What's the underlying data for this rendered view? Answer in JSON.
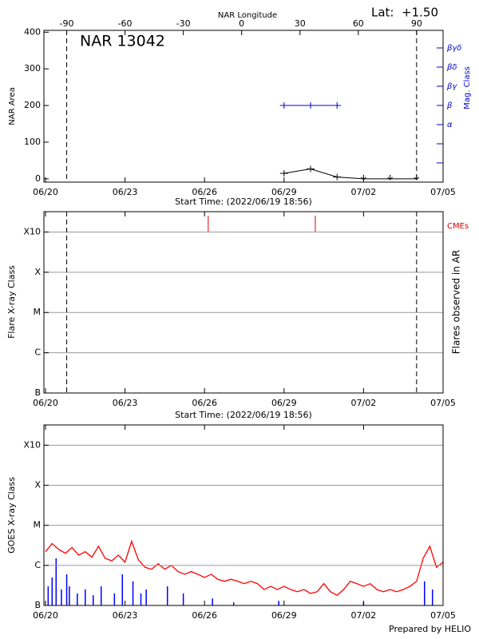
{
  "chart_data": [
    {
      "type": "nar",
      "title": "NAR 13042",
      "annotation": "Lat:  +1.50",
      "x2label": "NAR Longitude",
      "xlabel": "Start Time: (2022/06/19 18:56)",
      "ylabel": "NAR Area",
      "y2label": "Mag. Class",
      "xlim": [
        -0.06,
        15
      ],
      "xticks": [
        {
          "value": 0,
          "label": "06/20"
        },
        {
          "value": 3,
          "label": "06/23"
        },
        {
          "value": 6,
          "label": "06/26"
        },
        {
          "value": 9,
          "label": "06/29"
        },
        {
          "value": 12,
          "label": "07/02"
        },
        {
          "value": 15,
          "label": "07/05"
        }
      ],
      "x2lim": [
        -101.7,
        103.6
      ],
      "x2ticks": [
        -90,
        -60,
        -30,
        0,
        30,
        60,
        90
      ],
      "ylim": [
        -9,
        405
      ],
      "yticks": [
        0,
        100,
        200,
        300,
        400
      ],
      "y2ticks": [
        null,
        null,
        "α",
        "β",
        "βγ",
        "βδ",
        "βγδ"
      ],
      "limb_x": [
        0.8,
        14
      ],
      "series": [
        {
          "color": "#000000",
          "x": [
            9,
            10,
            11,
            12,
            13,
            14
          ],
          "values": [
            15,
            27,
            5,
            0,
            0,
            0
          ],
          "markers": [
            "plus",
            "plus",
            "plus",
            "arrow",
            "arrow",
            "arrow"
          ]
        },
        {
          "axis": "y2",
          "color": "#0000cc",
          "x": [
            9,
            10,
            11
          ],
          "values": [
            "β",
            "β",
            "β"
          ]
        }
      ]
    },
    {
      "type": "flares",
      "xlabel": "Start Time: (2022/06/19 18:56)",
      "ylabel": "Flare X-ray Class",
      "y2label": "Flares observed in AR",
      "xlim": [
        -0.06,
        15
      ],
      "xticks": [
        {
          "value": 0,
          "label": "06/20"
        },
        {
          "value": 3,
          "label": "06/23"
        },
        {
          "value": 6,
          "label": "06/26"
        },
        {
          "value": 9,
          "label": "06/29"
        },
        {
          "value": 12,
          "label": "07/02"
        },
        {
          "value": 15,
          "label": "07/05"
        }
      ],
      "log": true,
      "ylim": [
        1e-07,
        0.0032
      ],
      "yticks": [
        {
          "value": 1e-07,
          "label": "B"
        },
        {
          "value": 1e-06,
          "label": "C"
        },
        {
          "value": 1e-05,
          "label": "M"
        },
        {
          "value": 0.0001,
          "label": "X"
        },
        {
          "value": 0.001,
          "label": "X10"
        }
      ],
      "grid": true,
      "limb_x": [
        0.8,
        14
      ],
      "cmes": {
        "label": "CMEs",
        "color": "#dd0000",
        "x": [
          6.14,
          10.18
        ]
      }
    },
    {
      "type": "goes",
      "ylabel": "GOES X-ray Class",
      "credit": "Prepared by HELIO",
      "xlim": [
        -0.06,
        15
      ],
      "xticks": [
        {
          "value": 0,
          "label": "06/20"
        },
        {
          "value": 3,
          "label": "06/23"
        },
        {
          "value": 6,
          "label": "06/26"
        },
        {
          "value": 9,
          "label": "06/29"
        },
        {
          "value": 12,
          "label": "07/02"
        },
        {
          "value": 15,
          "label": "07/05"
        }
      ],
      "log": true,
      "ylim": [
        1e-07,
        0.0032
      ],
      "yticks": [
        {
          "value": 1e-07,
          "label": "B"
        },
        {
          "value": 1e-06,
          "label": "C"
        },
        {
          "value": 1e-05,
          "label": "M"
        },
        {
          "value": 0.0001,
          "label": "X"
        },
        {
          "value": 0.001,
          "label": "X10"
        }
      ],
      "grid": true,
      "series": [
        {
          "color": "#ff0000",
          "style": "line",
          "x": [
            0,
            0.25,
            0.5,
            0.75,
            1,
            1.25,
            1.5,
            1.75,
            2,
            2.25,
            2.5,
            2.75,
            3,
            3.25,
            3.5,
            3.75,
            4,
            4.25,
            4.5,
            4.75,
            5,
            5.25,
            5.5,
            5.75,
            6,
            6.25,
            6.5,
            6.75,
            7,
            7.25,
            7.5,
            7.75,
            8,
            8.25,
            8.5,
            8.75,
            9,
            9.25,
            9.5,
            9.75,
            10,
            10.25,
            10.5,
            10.75,
            11,
            11.25,
            11.5,
            11.75,
            12,
            12.25,
            12.5,
            12.75,
            13,
            13.25,
            13.5,
            13.75,
            14,
            14.25,
            14.5,
            14.75,
            15
          ],
          "values": [
            2.2e-06,
            3.5e-06,
            2.5e-06,
            2e-06,
            2.8e-06,
            1.8e-06,
            2.2e-06,
            1.6e-06,
            3e-06,
            1.5e-06,
            1.3e-06,
            1.8e-06,
            1.2e-06,
            4e-06,
            1.4e-06,
            9e-07,
            8e-07,
            1.1e-06,
            8e-07,
            1e-06,
            7e-07,
            6e-07,
            7e-07,
            6e-07,
            5e-07,
            6e-07,
            4.5e-07,
            4e-07,
            4.5e-07,
            4e-07,
            3.5e-07,
            4e-07,
            3.5e-07,
            2.5e-07,
            3e-07,
            2.5e-07,
            3e-07,
            2.5e-07,
            2.2e-07,
            2.5e-07,
            2e-07,
            2.2e-07,
            3.5e-07,
            2.2e-07,
            1.8e-07,
            2.5e-07,
            4e-07,
            3.5e-07,
            3e-07,
            3.5e-07,
            2.5e-07,
            2.2e-07,
            2.5e-07,
            2.2e-07,
            2.5e-07,
            3e-07,
            4e-07,
            1.5e-06,
            3e-06,
            9e-07,
            1.2e-06
          ]
        },
        {
          "color": "#0000ff",
          "style": "spikes",
          "x": [
            0.1,
            0.25,
            0.4,
            0.6,
            0.8,
            0.9,
            1.2,
            1.5,
            1.8,
            2.1,
            2.6,
            2.9,
            3.3,
            3.6,
            3.8,
            4.6,
            5.2,
            6.3,
            7.1,
            8.8,
            12.0,
            14.3,
            14.6
          ],
          "values": [
            3e-07,
            5e-07,
            1.5e-06,
            2.5e-07,
            6e-07,
            3e-07,
            2e-07,
            2.5e-07,
            1.8e-07,
            3e-07,
            2e-07,
            6e-07,
            4e-07,
            2e-07,
            2.5e-07,
            3e-07,
            2e-07,
            1.5e-07,
            1.2e-07,
            1.3e-07,
            1.2e-07,
            4e-07,
            2.5e-07
          ]
        }
      ]
    }
  ]
}
